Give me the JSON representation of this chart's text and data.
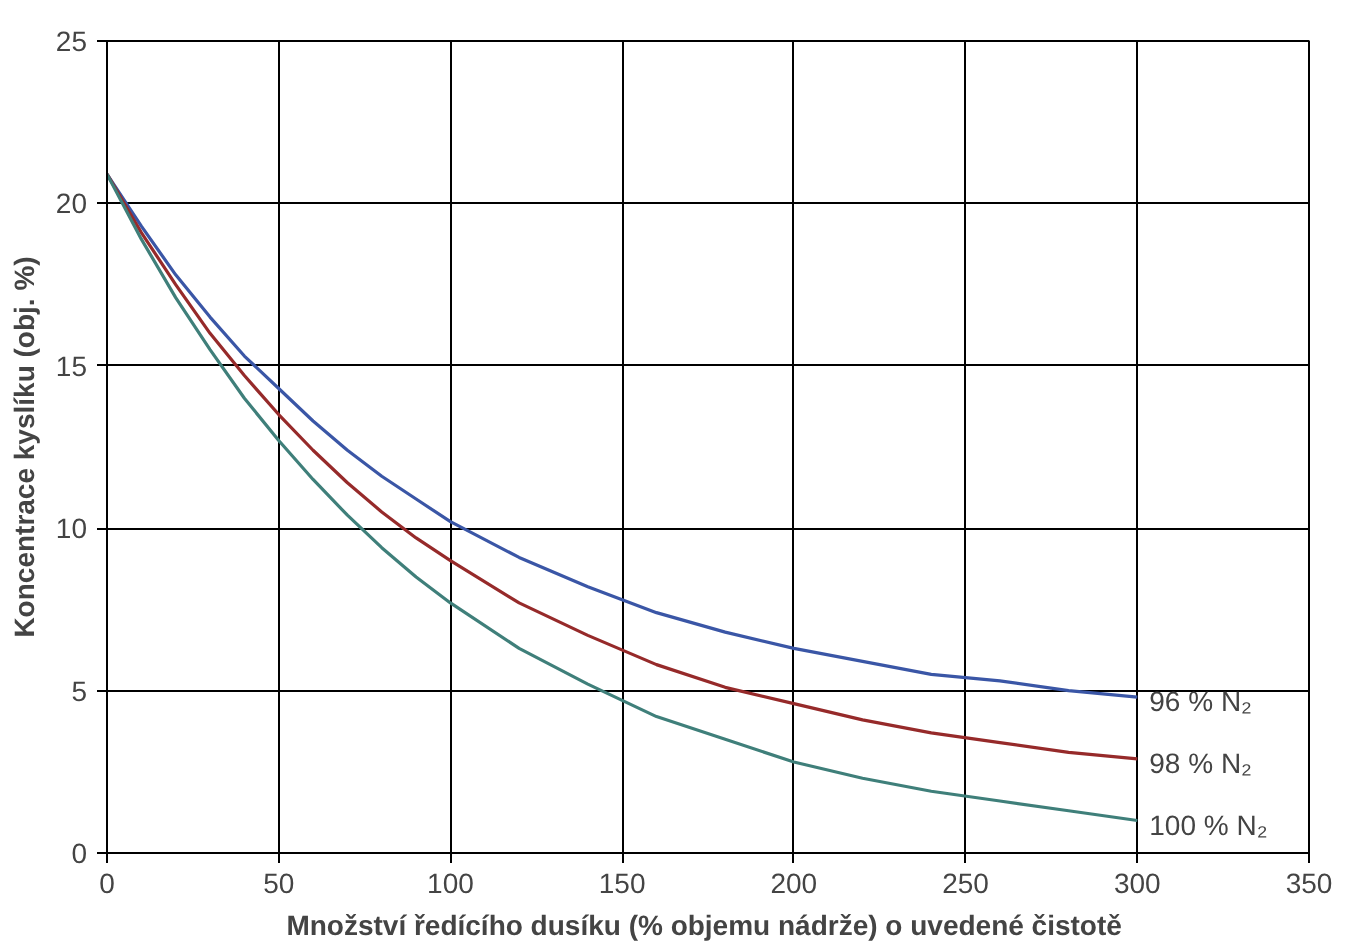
{
  "chart_data": {
    "type": "line",
    "xlabel": "Množství ředícího dusíku (%  objemu nádrže) o uvedené čistotě",
    "ylabel": "Koncentrace kyslíku (obj. %)",
    "x": [
      0,
      10,
      20,
      30,
      40,
      50,
      60,
      70,
      80,
      90,
      100,
      120,
      140,
      160,
      180,
      200,
      220,
      240,
      260,
      280,
      300
    ],
    "series": [
      {
        "name": "96 % N₂",
        "color": "#3a56a6",
        "values": [
          20.9,
          19.3,
          17.8,
          16.5,
          15.3,
          14.3,
          13.3,
          12.4,
          11.6,
          10.9,
          10.2,
          9.1,
          8.2,
          7.4,
          6.8,
          6.3,
          5.9,
          5.5,
          5.3,
          5.0,
          4.8
        ]
      },
      {
        "name": "98 % N₂",
        "color": "#962a2a",
        "values": [
          20.9,
          19.1,
          17.5,
          16.0,
          14.7,
          13.5,
          12.4,
          11.4,
          10.5,
          9.7,
          9.0,
          7.7,
          6.7,
          5.8,
          5.1,
          4.6,
          4.1,
          3.7,
          3.4,
          3.1,
          2.9
        ]
      },
      {
        "name": "100 % N₂",
        "color": "#3f7f7a",
        "values": [
          20.9,
          18.9,
          17.1,
          15.5,
          14.0,
          12.7,
          11.5,
          10.4,
          9.4,
          8.5,
          7.7,
          6.3,
          5.2,
          4.2,
          3.5,
          2.8,
          2.3,
          1.9,
          1.6,
          1.3,
          1.0
        ]
      }
    ],
    "xlim": [
      0,
      350
    ],
    "xticks": [
      0,
      50,
      100,
      150,
      200,
      250,
      300,
      350
    ],
    "ylim": [
      0,
      25
    ],
    "yticks": [
      0,
      5,
      10,
      15,
      20,
      25
    ],
    "grid": true,
    "marker": "none",
    "line_style": "solid"
  }
}
